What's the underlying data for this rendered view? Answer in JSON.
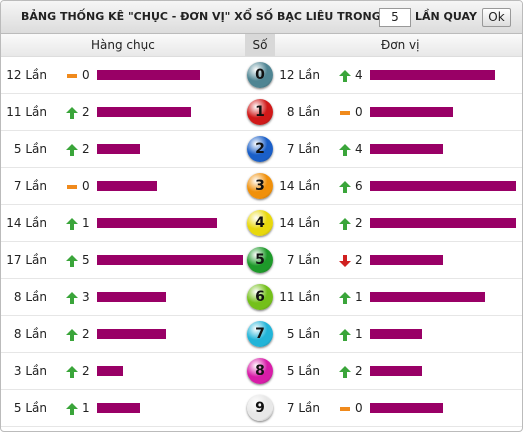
{
  "header": {
    "title": "BẢNG THỐNG KÊ \"CHỤC - ĐƠN VỊ\" XỔ SỐ BẠC LIÊU TRONG",
    "input_value": "5",
    "suffix": "LẦN QUAY",
    "button": "Ok"
  },
  "columns": [
    "Hàng chục",
    "Số",
    "Đơn vị"
  ],
  "rows": [
    {
      "tens": {
        "count": 12,
        "label": "12 Lần",
        "trend": "flat",
        "change": "0"
      },
      "digit": "0",
      "color": "#4f8593",
      "units": {
        "count": 12,
        "label": "12 Lần",
        "trend": "up",
        "change": "4"
      }
    },
    {
      "tens": {
        "count": 11,
        "label": "11 Lần",
        "trend": "up",
        "change": "2"
      },
      "digit": "1",
      "color": "#d01818",
      "units": {
        "count": 8,
        "label": "8 Lần",
        "trend": "flat",
        "change": "0"
      }
    },
    {
      "tens": {
        "count": 5,
        "label": "5 Lần",
        "trend": "up",
        "change": "2"
      },
      "digit": "2",
      "color": "#1a5fc8",
      "units": {
        "count": 7,
        "label": "7 Lần",
        "trend": "up",
        "change": "4"
      }
    },
    {
      "tens": {
        "count": 7,
        "label": "7 Lần",
        "trend": "flat",
        "change": "0"
      },
      "digit": "3",
      "color": "#f0900a",
      "units": {
        "count": 14,
        "label": "14 Lần",
        "trend": "up",
        "change": "6"
      }
    },
    {
      "tens": {
        "count": 14,
        "label": "14 Lần",
        "trend": "up",
        "change": "1"
      },
      "digit": "4",
      "color": "#e8d80c",
      "units": {
        "count": 14,
        "label": "14 Lần",
        "trend": "up",
        "change": "2"
      }
    },
    {
      "tens": {
        "count": 17,
        "label": "17 Lần",
        "trend": "up",
        "change": "5"
      },
      "digit": "5",
      "color": "#1e9a2a",
      "units": {
        "count": 7,
        "label": "7 Lần",
        "trend": "down",
        "change": "2"
      }
    },
    {
      "tens": {
        "count": 8,
        "label": "8 Lần",
        "trend": "up",
        "change": "3"
      },
      "digit": "6",
      "color": "#74c01a",
      "units": {
        "count": 11,
        "label": "11 Lần",
        "trend": "up",
        "change": "1"
      }
    },
    {
      "tens": {
        "count": 8,
        "label": "8 Lần",
        "trend": "up",
        "change": "2"
      },
      "digit": "7",
      "color": "#22b4d8",
      "units": {
        "count": 5,
        "label": "5 Lần",
        "trend": "up",
        "change": "1"
      }
    },
    {
      "tens": {
        "count": 3,
        "label": "3 Lần",
        "trend": "up",
        "change": "2"
      },
      "digit": "8",
      "color": "#d81ca8",
      "units": {
        "count": 5,
        "label": "5 Lần",
        "trend": "up",
        "change": "2"
      }
    },
    {
      "tens": {
        "count": 5,
        "label": "5 Lần",
        "trend": "up",
        "change": "1"
      },
      "digit": "9",
      "color": "#e8e8e8",
      "units": {
        "count": 7,
        "label": "7 Lần",
        "trend": "flat",
        "change": "0"
      }
    }
  ]
}
